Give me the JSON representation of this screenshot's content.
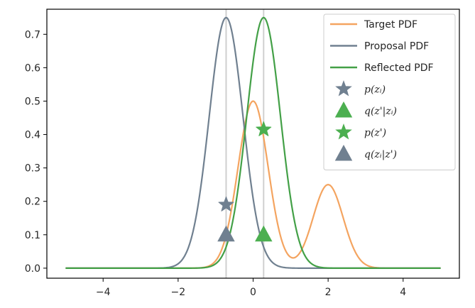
{
  "chart_data": {
    "type": "line",
    "title": "",
    "xlabel": "",
    "ylabel": "",
    "xlim": [
      -5.5,
      5.5
    ],
    "ylim": [
      -0.03,
      0.775
    ],
    "x_ticks": [
      -4,
      -2,
      0,
      2,
      4
    ],
    "x_tick_labels": [
      "−4",
      "−2",
      "0",
      "2",
      "4"
    ],
    "y_ticks": [
      0.0,
      0.1,
      0.2,
      0.3,
      0.4,
      0.5,
      0.6,
      0.7
    ],
    "y_tick_labels": [
      "0.0",
      "0.1",
      "0.2",
      "0.3",
      "0.4",
      "0.5",
      "0.6",
      "0.7"
    ],
    "grid": false,
    "legend_position": "top-right",
    "x_range": [
      -5,
      5
    ],
    "vertical_lines": [
      {
        "x": -0.72,
        "color": "#d0d0d0"
      },
      {
        "x": 0.28,
        "color": "#d0d0d0"
      }
    ],
    "series": [
      {
        "name": "Target PDF",
        "kind": "line",
        "color": "#f4a460",
        "components": [
          {
            "weight": 0.5,
            "mean": 0,
            "sd": 0.4
          },
          {
            "weight": 0.25,
            "mean": 2,
            "sd": 0.4
          }
        ]
      },
      {
        "name": "Proposal PDF",
        "kind": "line",
        "color": "#708090",
        "components": [
          {
            "weight": 0.75,
            "mean": -0.72,
            "sd": 0.45
          }
        ]
      },
      {
        "name": "Reflected PDF",
        "kind": "line",
        "color": "#43a047",
        "components": [
          {
            "weight": 0.75,
            "mean": 0.28,
            "sd": 0.45
          }
        ]
      }
    ],
    "markers": [
      {
        "name": "p(z_i)",
        "shape": "star",
        "color": "#708090",
        "x": -0.72,
        "y": 0.19
      },
      {
        "name": "q(z'|z_i)",
        "shape": "triangle",
        "color": "#4caf50",
        "x": 0.28,
        "y": 0.1
      },
      {
        "name": "p(z')",
        "shape": "star",
        "color": "#4caf50",
        "x": 0.28,
        "y": 0.415
      },
      {
        "name": "q(z_i|z')",
        "shape": "triangle",
        "color": "#708090",
        "x": -0.72,
        "y": 0.1
      }
    ]
  },
  "legend": {
    "entries": [
      {
        "kind": "line",
        "color": "#f4a460",
        "label": "Target PDF"
      },
      {
        "kind": "line",
        "color": "#708090",
        "label": "Proposal PDF"
      },
      {
        "kind": "line",
        "color": "#43a047",
        "label": "Reflected PDF"
      },
      {
        "kind": "star",
        "color": "#708090",
        "label": "p(zᵢ)"
      },
      {
        "kind": "triangle",
        "color": "#4caf50",
        "label": "q(z'|zᵢ)"
      },
      {
        "kind": "star",
        "color": "#4caf50",
        "label": "p(z')"
      },
      {
        "kind": "triangle",
        "color": "#708090",
        "label": "q(zᵢ|z')"
      }
    ]
  }
}
